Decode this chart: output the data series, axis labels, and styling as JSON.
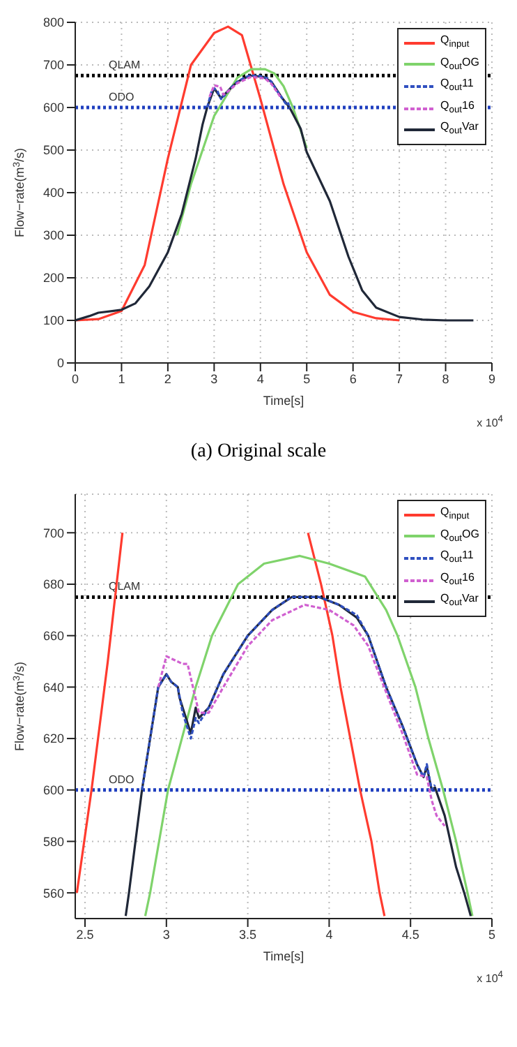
{
  "chart_data": [
    {
      "type": "line",
      "xlabel": "Time[s]",
      "ylabel": "Flow−rate(m$^{3}$/s)",
      "xlim": [
        0,
        9
      ],
      "ylim": [
        0,
        800
      ],
      "xticks": [
        0,
        1,
        2,
        3,
        4,
        5,
        6,
        7,
        8,
        9
      ],
      "yticks": [
        0,
        100,
        200,
        300,
        400,
        500,
        600,
        700,
        800
      ],
      "grid": true,
      "legend": "top right",
      "marker": "none",
      "annotations": [
        "x 10$^{4}$",
        "(a) Original scale"
      ],
      "ref_lines": [
        {
          "axis": "y",
          "value": 675,
          "label": "QLAM",
          "color": "#000000",
          "line_style": "dotted"
        },
        {
          "axis": "y",
          "value": 600,
          "label": "ODO",
          "color": "#1f3fbf",
          "line_style": "dotted"
        }
      ],
      "series": [
        {
          "name": "Q$_{input}$",
          "color": "#ff3b2f",
          "line_style": "solid",
          "x": [
            0,
            0.5,
            1,
            1.5,
            2,
            2.5,
            3,
            3.3,
            3.6,
            4,
            4.5,
            5,
            5.5,
            6,
            6.5,
            7
          ],
          "values": [
            100,
            103,
            122,
            230,
            480,
            700,
            775,
            790,
            770,
            620,
            420,
            260,
            160,
            120,
            105,
            100
          ]
        },
        {
          "name": "Q$_{out}$OG",
          "color": "#7fd36b",
          "line_style": "solid",
          "x": [
            2.2,
            2.5,
            3,
            3.5,
            3.8,
            4.1,
            4.3,
            4.5,
            4.7,
            5
          ],
          "values": [
            300,
            420,
            580,
            670,
            690,
            690,
            680,
            650,
            600,
            505
          ]
        },
        {
          "name": "Q$_{out}$11",
          "color": "#3050c0",
          "line_style": "dashed",
          "x": [
            2.85,
            2.95,
            3.0,
            3.03,
            3.07,
            3.1,
            3.15,
            3.18,
            3.2,
            3.26,
            3.35,
            3.5,
            3.65,
            3.77,
            3.94,
            4.06,
            4.17,
            4.24,
            4.35,
            4.45,
            4.54,
            4.58,
            4.6,
            4.63,
            4.65
          ],
          "values": [
            600,
            640,
            645,
            642,
            640,
            630,
            620,
            628,
            626,
            632,
            645,
            660,
            670,
            675,
            675,
            672,
            668,
            660,
            640,
            625,
            610,
            605,
            610,
            600,
            602
          ]
        },
        {
          "name": "Q$_{out}$16",
          "color": "#d060d0",
          "line_style": "dashed",
          "x": [
            2.9,
            3.0,
            3.13,
            3.2,
            3.35,
            3.5,
            3.8,
            4.1,
            4.24,
            4.45
          ],
          "values": [
            625,
            652,
            649,
            630,
            642,
            657,
            672,
            668,
            655,
            622
          ]
        },
        {
          "name": "Q$_{out}$Var",
          "color": "#202838",
          "line_style": "solid",
          "x": [
            0,
            0.3,
            0.5,
            0.8,
            1,
            1.3,
            1.6,
            2,
            2.3,
            2.6,
            2.75,
            2.85,
            3,
            3.15,
            3.35,
            3.5,
            3.77,
            4.06,
            4.24,
            4.45,
            4.63,
            4.87,
            5,
            5.5,
            5.9,
            6.2,
            6.5,
            7,
            7.5,
            8,
            8.6
          ],
          "values": [
            100,
            110,
            118,
            122,
            125,
            140,
            180,
            260,
            350,
            480,
            560,
            600,
            645,
            622,
            645,
            660,
            675,
            672,
            660,
            625,
            600,
            550,
            495,
            380,
            250,
            170,
            130,
            108,
            102,
            100,
            100
          ]
        }
      ]
    },
    {
      "type": "line",
      "xlabel": "Time[s]",
      "ylabel": "Flow−rate(m$^{3}$/s)",
      "xlim": [
        2.44,
        5
      ],
      "ylim": [
        550,
        715
      ],
      "xticks": [
        2.5,
        3,
        3.5,
        4,
        4.5,
        5
      ],
      "yticks": [
        560,
        580,
        600,
        620,
        640,
        660,
        680,
        700
      ],
      "grid": true,
      "legend": "top right",
      "marker": "none",
      "annotations": [
        "x 10$^{4}$"
      ],
      "ref_lines": [
        {
          "axis": "y",
          "value": 675,
          "label": "QLAM",
          "color": "#000000",
          "line_style": "dotted"
        },
        {
          "axis": "y",
          "value": 600,
          "label": "ODO",
          "color": "#1f3fbf",
          "line_style": "dotted"
        }
      ],
      "series": [
        {
          "name": "Q$_{input}$",
          "color": "#ff3b2f",
          "line_style": "solid",
          "x": [
            2.45,
            2.54,
            2.64,
            2.73,
            null,
            3.87,
            3.95,
            4.02,
            4.07,
            4.13,
            4.19,
            4.26,
            4.31,
            4.34
          ],
          "values": [
            560,
            600,
            650,
            700,
            null,
            700,
            680,
            660,
            640,
            620,
            600,
            580,
            560,
            551
          ]
        },
        {
          "name": "Q$_{out}$OG",
          "color": "#7fd36b",
          "line_style": "solid",
          "x": [
            2.87,
            2.9,
            3.01,
            3.18,
            3.28,
            3.44,
            3.6,
            3.82,
            4.0,
            4.22,
            4.35,
            4.42,
            4.53,
            4.61,
            4.7,
            4.78,
            4.85,
            4.88
          ],
          "values": [
            551,
            560,
            600,
            640,
            660,
            680,
            688,
            691,
            688,
            683,
            670,
            660,
            640,
            620,
            600,
            580,
            560,
            551
          ]
        },
        {
          "name": "Q$_{out}$11",
          "color": "#3050c0",
          "line_style": "dashed",
          "x": [
            2.85,
            2.95,
            3.0,
            3.03,
            3.07,
            3.1,
            3.15,
            3.18,
            3.2,
            3.26,
            3.35,
            3.5,
            3.65,
            3.77,
            3.94,
            4.06,
            4.17,
            4.24,
            4.35,
            4.45,
            4.54,
            4.58,
            4.6,
            4.63,
            4.65
          ],
          "values": [
            600,
            640,
            645,
            642,
            640,
            630,
            620,
            628,
            626,
            632,
            645,
            660,
            670,
            675,
            675,
            672,
            668,
            660,
            640,
            625,
            610,
            605,
            610,
            600,
            602
          ]
        },
        {
          "name": "Q$_{out}$16",
          "color": "#d060d0",
          "line_style": "dashed",
          "x": [
            2.95,
            3.0,
            3.1,
            3.13,
            3.2,
            3.26,
            3.35,
            3.5,
            3.65,
            3.85,
            4.0,
            4.15,
            4.24,
            4.35,
            4.45,
            4.54,
            4.6,
            4.63,
            4.66,
            4.71
          ],
          "values": [
            640,
            652,
            649,
            649,
            630,
            630,
            640,
            656,
            666,
            672,
            670,
            664,
            656,
            638,
            622,
            606,
            605,
            596,
            590,
            586
          ]
        },
        {
          "name": "Q$_{out}$Var",
          "color": "#202838",
          "line_style": "solid",
          "x": [
            2.75,
            2.77,
            2.85,
            2.95,
            3.0,
            3.03,
            3.07,
            3.08,
            3.15,
            3.18,
            3.2,
            3.26,
            3.35,
            3.5,
            3.65,
            3.77,
            3.94,
            4.06,
            4.17,
            4.24,
            4.35,
            4.45,
            4.54,
            4.58,
            4.6,
            4.63,
            4.65,
            4.71,
            4.78,
            4.83,
            4.87
          ],
          "values": [
            551,
            560,
            600,
            640,
            645,
            642,
            640,
            636,
            622,
            632,
            628,
            632,
            645,
            660,
            670,
            675,
            675,
            672,
            667,
            660,
            640,
            625,
            610,
            605,
            609,
            600,
            601,
            590,
            570,
            560,
            551
          ]
        }
      ]
    }
  ]
}
